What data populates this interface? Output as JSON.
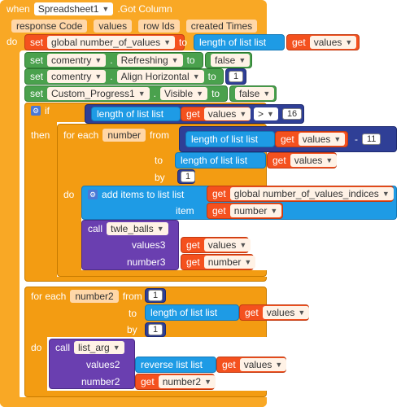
{
  "event": {
    "when_label": "when",
    "component": "Spreadsheet1",
    "event_name": ".Got Column",
    "params": [
      "response Code",
      "values",
      "row Ids",
      "created Times"
    ],
    "do_label": "do"
  },
  "statements": {
    "set1": {
      "set": "set",
      "var": "global number_of_values",
      "to": "to",
      "length_of_list": "length of list  list",
      "get": "get",
      "get_var": "values"
    },
    "set2": {
      "set": "set",
      "comp": "comentry",
      "dot": ".",
      "prop": "Refreshing",
      "to": "to",
      "value": "false"
    },
    "set3": {
      "set": "set",
      "comp": "comentry",
      "dot": ".",
      "prop": "Align Horizontal",
      "to": "to",
      "value": "1"
    },
    "set4": {
      "set": "set",
      "comp": "Custom_Progress1",
      "dot": ".",
      "prop": "Visible",
      "to": "to",
      "value": "false"
    }
  },
  "if_block": {
    "if_label": "if",
    "length_of_list": "length of list  list",
    "get": "get",
    "get_var": "values",
    "op": ">",
    "num": "16",
    "then_label": "then"
  },
  "foreach1": {
    "for_each": "for each",
    "var": "number",
    "from": "from",
    "from_length": "length of list  list",
    "get": "get",
    "get_var": "values",
    "minus": "-",
    "minus_num": "11",
    "to": "to",
    "to_length": "length of list  list",
    "to_get_var": "values",
    "by": "by",
    "by_num": "1",
    "do": "do",
    "add_items": "add items to list  list",
    "add_get_var": "global number_of_values_indices",
    "item": "item",
    "item_get_var": "number",
    "call": "call",
    "proc": "twle_balls",
    "arg1": "values3",
    "arg1_var": "values",
    "arg2": "number3",
    "arg2_var": "number"
  },
  "foreach2": {
    "for_each": "for each",
    "var": "number2",
    "from": "from",
    "from_num": "1",
    "to": "to",
    "to_length": "length of list  list",
    "to_get_var": "values",
    "by": "by",
    "by_num": "1",
    "do": "do",
    "call": "call",
    "proc": "list_arg",
    "arg1": "values2",
    "reverse": "reverse list  list",
    "arg1_var": "values",
    "arg2": "number2",
    "arg2_var": "number2"
  }
}
